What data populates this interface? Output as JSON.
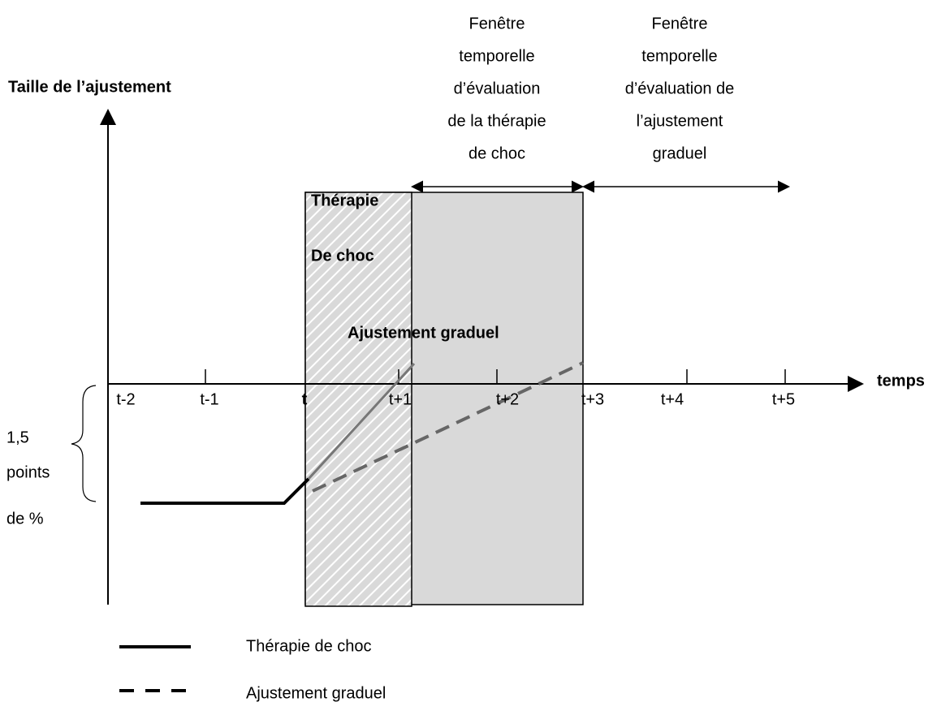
{
  "axis": {
    "y_label": "Taille de l’ajustement",
    "x_label": "temps"
  },
  "ticks": [
    "t-2",
    "t-1",
    "t",
    "t+1",
    "t+2",
    "t+3",
    "t+4",
    "t+5"
  ],
  "windows": {
    "shock": [
      "Fenêtre",
      "temporelle",
      "d’évaluation",
      "de la thérapie",
      "de choc"
    ],
    "gradual": [
      "Fenêtre",
      "temporelle",
      "d’évaluation de",
      "l’ajustement",
      "graduel"
    ]
  },
  "regions": {
    "shock": [
      "Thérapie",
      "De choc"
    ],
    "gradual": "Ajustement graduel"
  },
  "scale": [
    "1,5",
    "points",
    "de %"
  ],
  "legend": [
    "Thérapie de choc",
    "Ajustement graduel"
  ]
}
